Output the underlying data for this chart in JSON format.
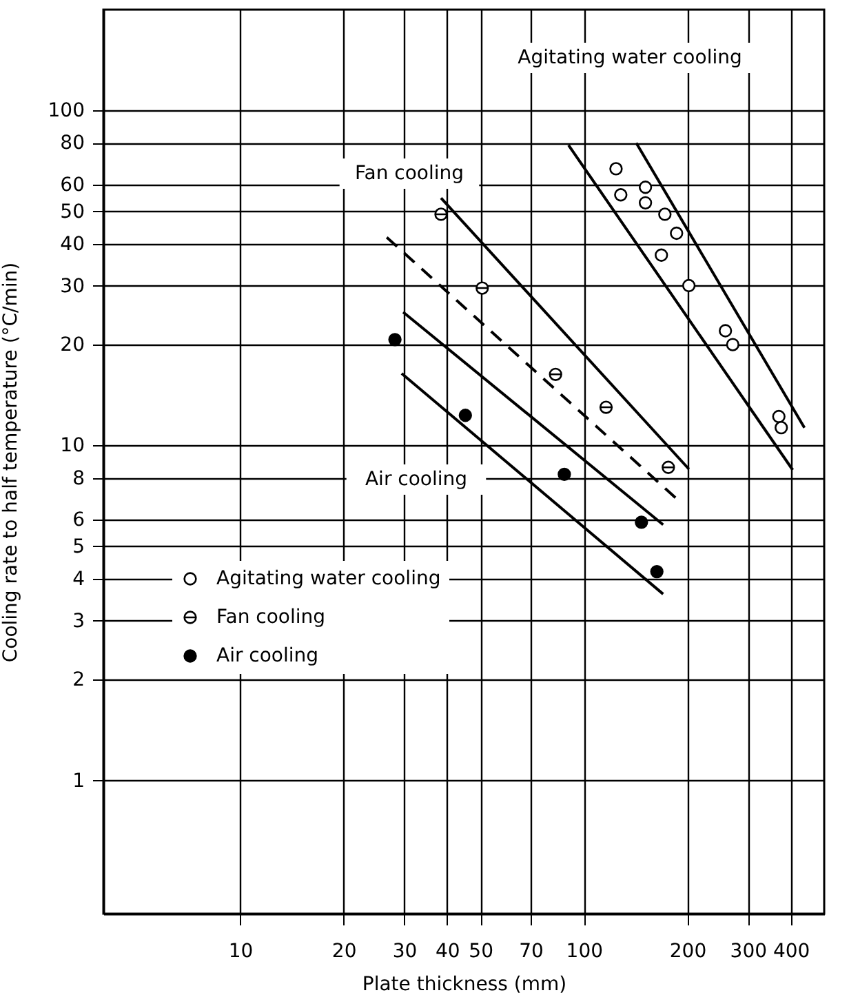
{
  "chart_data": {
    "type": "scatter",
    "xlabel": "Plate thickness     (mm)",
    "ylabel": "Cooling rate to half temperature     (°C/min)",
    "log": "xy",
    "xlim": [
      4,
      500
    ],
    "ylim": [
      0.4,
      200
    ],
    "xticks": [
      10,
      20,
      30,
      40,
      50,
      70,
      100,
      200,
      300,
      400
    ],
    "yticks": [
      1,
      2,
      3,
      4,
      5,
      6,
      8,
      10,
      20,
      30,
      40,
      50,
      60,
      80,
      100
    ],
    "grid": true,
    "legend": "bottom left",
    "series": [
      {
        "name": "Agitating water cooling",
        "type": "scatter",
        "marker": "circle",
        "color": "#ffffff",
        "x": [
          124,
          128,
          151,
          151,
          172,
          186,
          168,
          202,
          258,
          271,
          369,
          375
        ],
        "values": [
          67,
          56,
          59,
          53,
          49,
          43,
          37,
          30,
          22,
          20,
          12.2,
          11.3
        ]
      },
      {
        "name": "Fan cooling",
        "type": "scatter",
        "color": "#ffffff",
        "x": [
          38.4,
          50.6,
          82.7,
          116,
          176
        ],
        "values": [
          49,
          29.5,
          16.3,
          13,
          8.6
        ]
      },
      {
        "name": "Air cooling",
        "type": "scatter",
        "marker": "circle",
        "color": "#000000",
        "x": [
          28.2,
          45.2,
          87.7,
          147,
          163
        ],
        "values": [
          20.7,
          12.3,
          8.2,
          5.9,
          4.2
        ]
      },
      {
        "type": "line",
        "line_style": "solid",
        "color": "#000000",
        "x": [
          90.2,
          405
        ],
        "values": [
          78.8,
          8.45
        ]
      },
      {
        "type": "line",
        "line_style": "solid",
        "color": "#000000",
        "x": [
          142,
          438
        ],
        "values": [
          80,
          11.3
        ]
      },
      {
        "type": "line",
        "line_style": "solid",
        "color": "#000000",
        "x": [
          38.4,
          202
        ],
        "values": [
          54.8,
          8.5
        ]
      },
      {
        "type": "line",
        "line_style": "dashed",
        "color": "#000000",
        "x": [
          26.7,
          187
        ],
        "values": [
          41.8,
          6.9
        ]
      },
      {
        "type": "line",
        "line_style": "solid",
        "color": "#000000",
        "x": [
          29.8,
          170
        ],
        "values": [
          25,
          5.8
        ]
      },
      {
        "type": "line",
        "line_style": "solid",
        "color": "#000000",
        "x": [
          29.5,
          170
        ],
        "values": [
          16.4,
          3.6
        ]
      }
    ],
    "annotations": [
      "Agitating water cooling",
      "Fan cooling",
      "Air cooling"
    ]
  }
}
